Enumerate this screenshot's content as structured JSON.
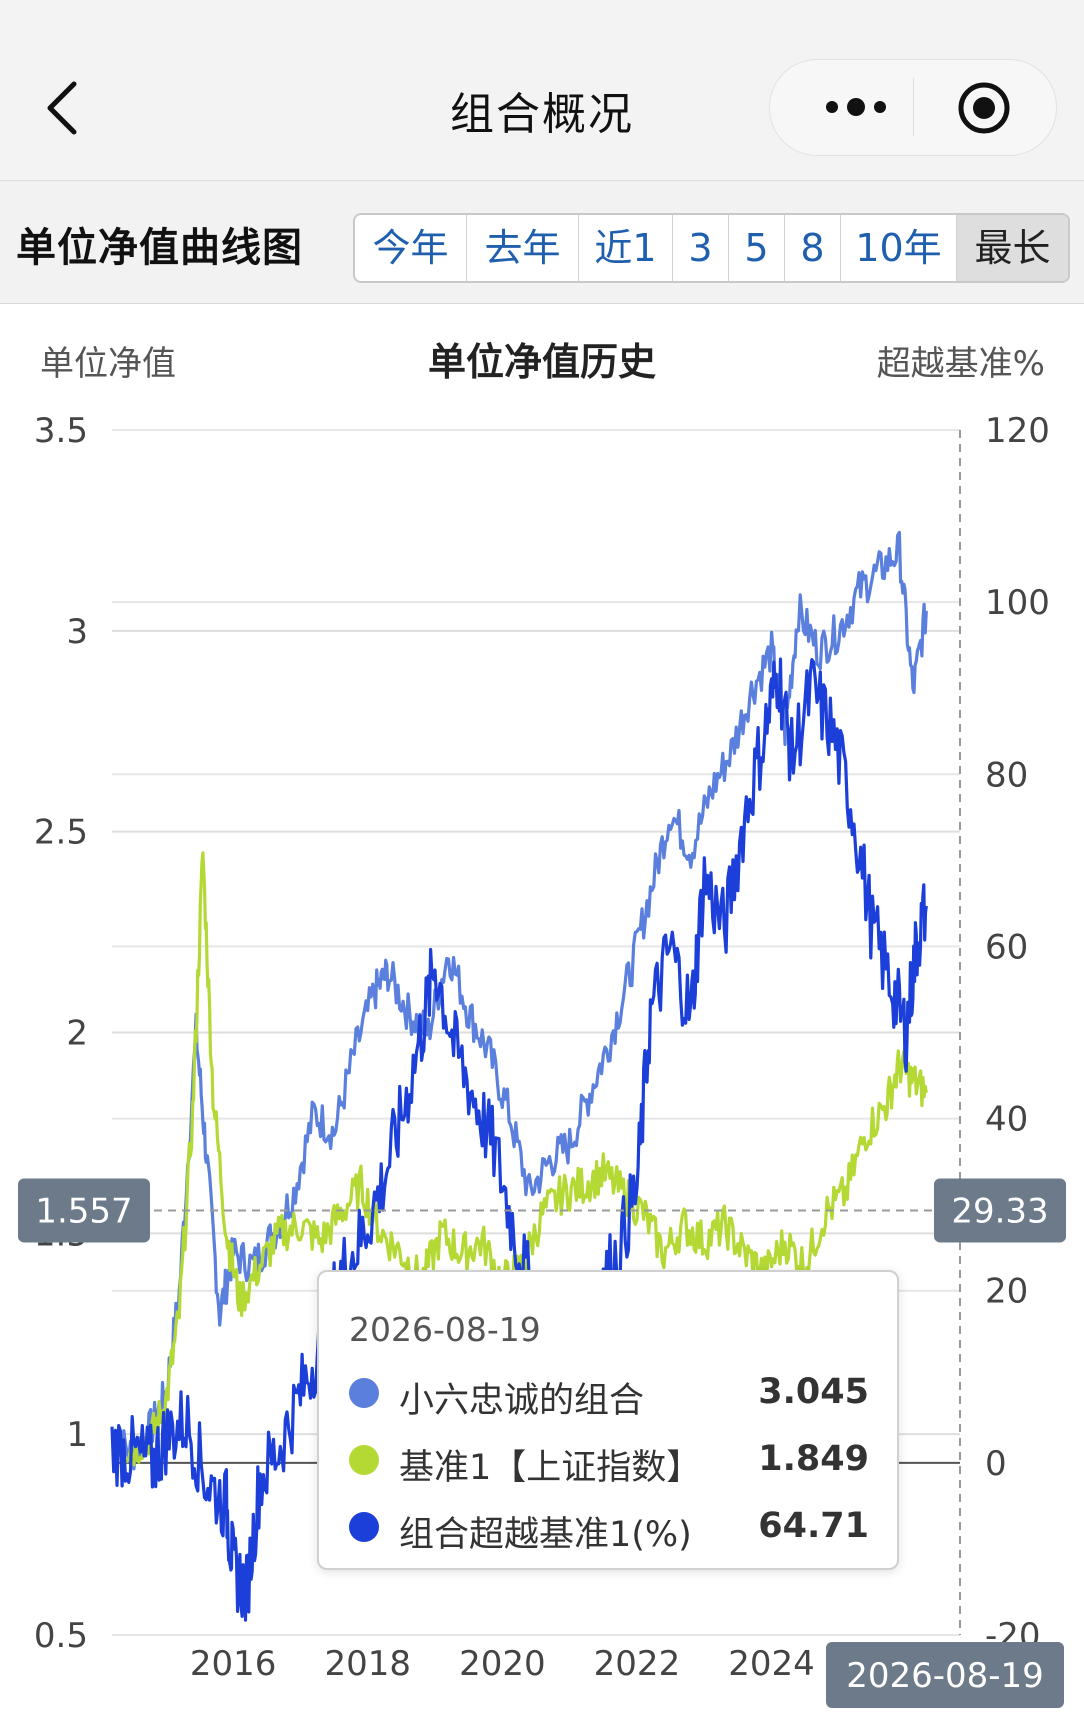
{
  "nav": {
    "title": "组合概况"
  },
  "card": {
    "title": "单位净值曲线图",
    "ranges": [
      "今年",
      "去年",
      "近1",
      "3",
      "5",
      "8",
      "10年",
      "最长"
    ],
    "active_range": "最长"
  },
  "chart_data": {
    "type": "line",
    "title": "单位净值历史",
    "ylabel": "单位净值",
    "y2label": "超越基准%",
    "ylim": [
      0.5,
      3.5
    ],
    "y2lim": [
      -20,
      120
    ],
    "yticks": [
      "0.5",
      "1",
      "1.5",
      "2",
      "2.5",
      "3",
      "3.5"
    ],
    "y2ticks": [
      "-20",
      "0",
      "20",
      "40",
      "60",
      "80",
      "100",
      "120"
    ],
    "xlabels": [
      "2016",
      "2018",
      "2020",
      "2022",
      "2024"
    ],
    "grid": true,
    "crosshair": {
      "y_value": "1.557",
      "y2_value": "29.33",
      "x_value": "2026-08-19"
    },
    "series": [
      {
        "name": "小六忠诚的组合",
        "axis": "left",
        "color": "#5b7fdc",
        "points": [
          [
            2014.2,
            1.0
          ],
          [
            2014.5,
            0.95
          ],
          [
            2014.8,
            1.02
          ],
          [
            2015.0,
            1.1
          ],
          [
            2015.2,
            1.35
          ],
          [
            2015.45,
            2.0
          ],
          [
            2015.6,
            1.7
          ],
          [
            2015.8,
            1.3
          ],
          [
            2016.0,
            1.45
          ],
          [
            2016.3,
            1.42
          ],
          [
            2016.6,
            1.5
          ],
          [
            2016.9,
            1.6
          ],
          [
            2017.2,
            1.8
          ],
          [
            2017.5,
            1.75
          ],
          [
            2017.8,
            1.95
          ],
          [
            2018.1,
            2.1
          ],
          [
            2018.3,
            2.15
          ],
          [
            2018.6,
            2.05
          ],
          [
            2018.9,
            2.0
          ],
          [
            2019.2,
            2.2
          ],
          [
            2019.5,
            2.05
          ],
          [
            2019.8,
            1.95
          ],
          [
            2020.1,
            1.8
          ],
          [
            2020.4,
            1.6
          ],
          [
            2020.7,
            1.68
          ],
          [
            2021.0,
            1.72
          ],
          [
            2021.3,
            1.85
          ],
          [
            2021.6,
            1.98
          ],
          [
            2021.9,
            2.15
          ],
          [
            2022.2,
            2.35
          ],
          [
            2022.5,
            2.55
          ],
          [
            2022.8,
            2.45
          ],
          [
            2023.1,
            2.6
          ],
          [
            2023.4,
            2.7
          ],
          [
            2023.7,
            2.85
          ],
          [
            2024.0,
            2.95
          ],
          [
            2024.2,
            2.75
          ],
          [
            2024.4,
            3.05
          ],
          [
            2024.7,
            2.95
          ],
          [
            2025.0,
            3.0
          ],
          [
            2025.3,
            3.1
          ],
          [
            2025.6,
            3.15
          ],
          [
            2025.9,
            3.2
          ],
          [
            2026.1,
            2.85
          ],
          [
            2026.3,
            3.05
          ]
        ]
      },
      {
        "name": "基准1【上证指数】",
        "axis": "left",
        "color": "#b4d934",
        "points": [
          [
            2014.2,
            0.98
          ],
          [
            2014.5,
            0.96
          ],
          [
            2014.8,
            1.0
          ],
          [
            2015.0,
            1.08
          ],
          [
            2015.2,
            1.3
          ],
          [
            2015.4,
            1.8
          ],
          [
            2015.55,
            2.45
          ],
          [
            2015.7,
            1.85
          ],
          [
            2015.9,
            1.5
          ],
          [
            2016.1,
            1.33
          ],
          [
            2016.4,
            1.42
          ],
          [
            2016.7,
            1.5
          ],
          [
            2017.0,
            1.52
          ],
          [
            2017.3,
            1.48
          ],
          [
            2017.6,
            1.55
          ],
          [
            2017.9,
            1.62
          ],
          [
            2018.2,
            1.5
          ],
          [
            2018.5,
            1.45
          ],
          [
            2018.8,
            1.38
          ],
          [
            2019.1,
            1.5
          ],
          [
            2019.4,
            1.45
          ],
          [
            2019.7,
            1.48
          ],
          [
            2020.0,
            1.38
          ],
          [
            2020.3,
            1.42
          ],
          [
            2020.6,
            1.55
          ],
          [
            2020.9,
            1.6
          ],
          [
            2021.2,
            1.62
          ],
          [
            2021.5,
            1.65
          ],
          [
            2021.8,
            1.6
          ],
          [
            2022.1,
            1.55
          ],
          [
            2022.4,
            1.45
          ],
          [
            2022.7,
            1.52
          ],
          [
            2023.0,
            1.48
          ],
          [
            2023.3,
            1.52
          ],
          [
            2023.6,
            1.45
          ],
          [
            2023.9,
            1.4
          ],
          [
            2024.2,
            1.48
          ],
          [
            2024.5,
            1.42
          ],
          [
            2024.8,
            1.55
          ],
          [
            2025.1,
            1.6
          ],
          [
            2025.4,
            1.75
          ],
          [
            2025.7,
            1.82
          ],
          [
            2025.9,
            1.92
          ],
          [
            2026.1,
            1.88
          ],
          [
            2026.3,
            1.85
          ]
        ]
      },
      {
        "name": "组合超越基准1(%)",
        "axis": "right",
        "color": "#1b3fd8",
        "points": [
          [
            2014.2,
            2
          ],
          [
            2014.5,
            1
          ],
          [
            2014.8,
            0
          ],
          [
            2015.0,
            3
          ],
          [
            2015.3,
            5
          ],
          [
            2015.6,
            -2
          ],
          [
            2015.9,
            -5
          ],
          [
            2016.0,
            -12
          ],
          [
            2016.2,
            -15
          ],
          [
            2016.4,
            -2
          ],
          [
            2016.7,
            2
          ],
          [
            2017.0,
            8
          ],
          [
            2017.3,
            14
          ],
          [
            2017.6,
            22
          ],
          [
            2017.9,
            26
          ],
          [
            2018.2,
            32
          ],
          [
            2018.5,
            40
          ],
          [
            2018.8,
            50
          ],
          [
            2019.0,
            58
          ],
          [
            2019.3,
            48
          ],
          [
            2019.6,
            42
          ],
          [
            2019.9,
            36
          ],
          [
            2020.2,
            26
          ],
          [
            2020.5,
            18
          ],
          [
            2020.8,
            12
          ],
          [
            2021.1,
            14
          ],
          [
            2021.4,
            20
          ],
          [
            2021.7,
            24
          ],
          [
            2022.0,
            32
          ],
          [
            2022.2,
            52
          ],
          [
            2022.5,
            60
          ],
          [
            2022.8,
            52
          ],
          [
            2023.0,
            68
          ],
          [
            2023.3,
            62
          ],
          [
            2023.6,
            75
          ],
          [
            2023.9,
            85
          ],
          [
            2024.1,
            92
          ],
          [
            2024.3,
            82
          ],
          [
            2024.6,
            90
          ],
          [
            2024.9,
            85
          ],
          [
            2025.2,
            76
          ],
          [
            2025.5,
            62
          ],
          [
            2025.8,
            55
          ],
          [
            2026.0,
            50
          ],
          [
            2026.15,
            60
          ],
          [
            2026.3,
            64.71
          ]
        ]
      }
    ]
  },
  "tooltip": {
    "date": "2026-08-19",
    "rows": [
      {
        "name": "小六忠诚的组合",
        "value": "3.045",
        "color": "#5b7fdc"
      },
      {
        "name": "基准1【上证指数】",
        "value": "1.849",
        "color": "#b4d934"
      },
      {
        "name": "组合超越基准1(%)",
        "value": "64.71",
        "color": "#1b3fd8"
      }
    ]
  }
}
